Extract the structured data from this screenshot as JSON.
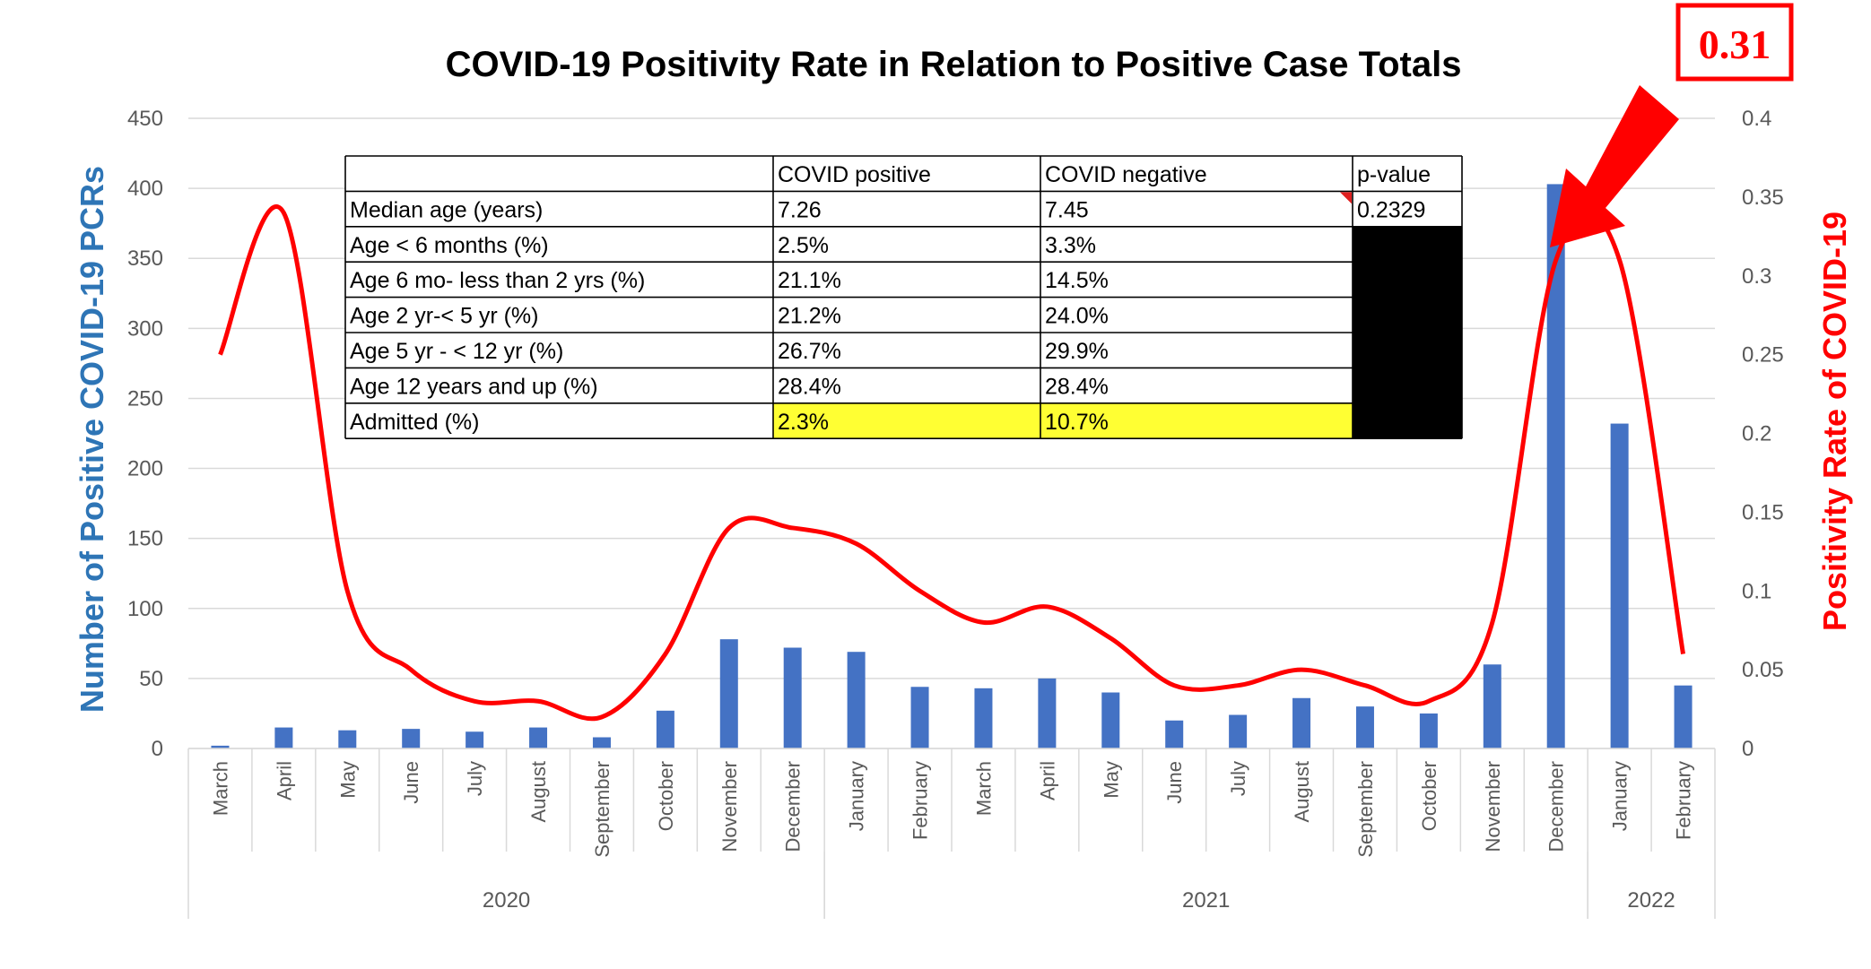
{
  "chart_data": {
    "type": "bar",
    "title": "COVID-19 Positivity Rate in Relation to Positive Case Totals",
    "ylabel": "Number of Positive COVID-19 PCRs",
    "y2label": "Positivity Rate of COVID-19",
    "ylim": [
      0,
      450
    ],
    "y2lim": [
      0,
      0.4
    ],
    "yticks": [
      "0",
      "50",
      "100",
      "150",
      "200",
      "250",
      "300",
      "350",
      "400",
      "450"
    ],
    "y2ticks": [
      "0",
      "0.05",
      "0.1",
      "0.15",
      "0.2",
      "0.25",
      "0.3",
      "0.35",
      "0.4"
    ],
    "grid": true,
    "categories": [
      "March",
      "April",
      "May",
      "June",
      "July",
      "August",
      "September",
      "October",
      "November",
      "December",
      "January",
      "February",
      "March",
      "April",
      "May",
      "June",
      "July",
      "August",
      "September",
      "October",
      "November",
      "December",
      "January",
      "February"
    ],
    "year_groups": [
      {
        "label": "2020",
        "count": 10
      },
      {
        "label": "2021",
        "count": 12
      },
      {
        "label": "2022",
        "count": 2
      }
    ],
    "series": [
      {
        "type": "bar",
        "axis": "left",
        "color": "#4472C4",
        "values": [
          2,
          15,
          13,
          14,
          12,
          15,
          8,
          27,
          78,
          72,
          69,
          44,
          43,
          50,
          40,
          20,
          24,
          36,
          30,
          25,
          60,
          403,
          232,
          45
        ]
      },
      {
        "type": "line",
        "axis": "right",
        "color": "#FF0000",
        "values": [
          0.25,
          0.34,
          0.1,
          0.05,
          0.03,
          0.03,
          0.02,
          0.06,
          0.14,
          0.14,
          0.13,
          0.1,
          0.08,
          0.09,
          0.07,
          0.04,
          0.04,
          0.05,
          0.04,
          0.03,
          0.08,
          0.31,
          0.31,
          0.06
        ]
      }
    ],
    "callout": {
      "text": "0.31",
      "color": "#FF0000"
    },
    "table": {
      "headers": [
        "",
        "COVID positive",
        "COVID negative",
        "p-value"
      ],
      "rows": [
        [
          "Median age (years)",
          "7.26",
          "7.45",
          "0.2329"
        ],
        [
          "Age < 6 months (%)",
          "2.5%",
          "3.3%",
          ""
        ],
        [
          "Age 6 mo- less than 2 yrs (%)",
          "21.1%",
          "14.5%",
          ""
        ],
        [
          "Age 2 yr-< 5 yr (%)",
          "21.2%",
          "24.0%",
          ""
        ],
        [
          "Age 5 yr - < 12 yr (%)",
          "26.7%",
          "29.9%",
          ""
        ],
        [
          "Age 12 years and up (%)",
          "28.4%",
          "28.4%",
          ""
        ],
        [
          "Admitted (%)",
          "2.3%",
          "10.7%",
          ""
        ]
      ],
      "highlight_color": "#FFFF33"
    }
  }
}
